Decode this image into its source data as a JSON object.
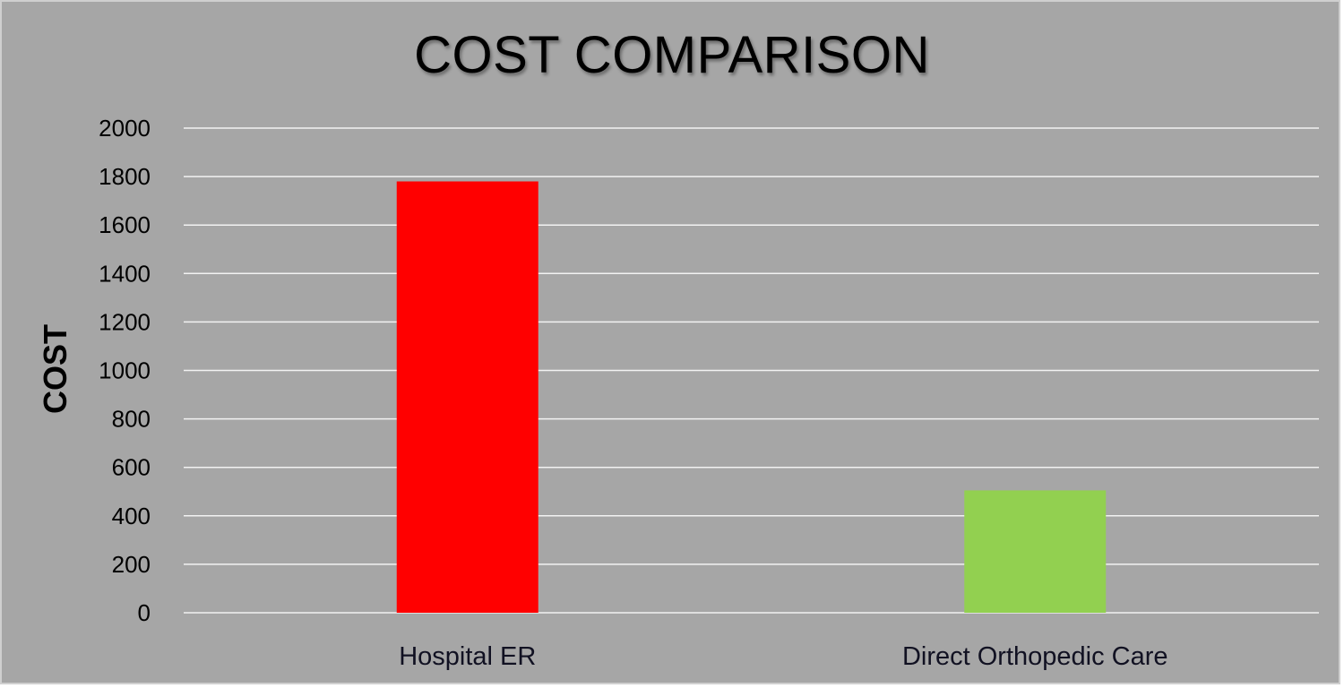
{
  "chart_data": {
    "type": "bar",
    "title": "COST COMPARISON",
    "xlabel": "",
    "ylabel": "COST",
    "categories": [
      "Hospital ER",
      "Direct Orthopedic Care"
    ],
    "values": [
      1780,
      505
    ],
    "colors": [
      "#ff0000",
      "#92d050"
    ],
    "ylim": [
      0,
      2000
    ],
    "yticks": [
      0,
      200,
      400,
      600,
      800,
      1000,
      1200,
      1400,
      1600,
      1800,
      2000
    ],
    "ytick_labels": [
      "0",
      "200",
      "400",
      "600",
      "800",
      "1000",
      "1200",
      "1400",
      "1600",
      "1800",
      "2000"
    ],
    "grid": true,
    "legend": "none",
    "background": "#a6a6a6"
  }
}
